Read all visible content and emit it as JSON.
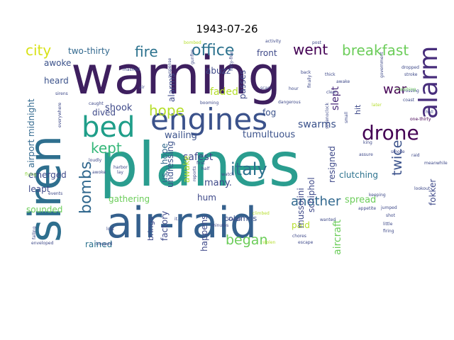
{
  "title": "1943-07-26",
  "words": [
    {
      "text": "planes",
      "color": "#2a9d8f"
    },
    {
      "text": "warning",
      "color": "#3e1f5f"
    },
    {
      "text": "air-raid",
      "color": "#35608d"
    },
    {
      "text": "siren",
      "color": "#2e6f8e"
    },
    {
      "text": "engines",
      "color": "#3b528b"
    },
    {
      "text": "bed",
      "color": "#1f9e89"
    },
    {
      "text": "drone",
      "color": "#440154"
    },
    {
      "text": "alarm",
      "color": "#472d7b"
    },
    {
      "text": "bombs",
      "color": "#31688e"
    },
    {
      "text": "italy",
      "color": "#2c728e"
    },
    {
      "text": "breakfast",
      "color": "#6ccd5a"
    },
    {
      "text": "office",
      "color": "#2c728e"
    },
    {
      "text": "fire",
      "color": "#2c728e"
    },
    {
      "text": "city",
      "color": "#d8e219"
    },
    {
      "text": "went",
      "color": "#440154"
    },
    {
      "text": "hope",
      "color": "#b5de2b"
    },
    {
      "text": "kept",
      "color": "#35b779"
    },
    {
      "text": "began",
      "color": "#6ccd5a"
    },
    {
      "text": "another",
      "color": "#31688e"
    },
    {
      "text": "twice",
      "color": "#3b528b"
    },
    {
      "text": "war",
      "color": "#440154"
    },
    {
      "text": "two-thirty",
      "color": "#31688e"
    },
    {
      "text": "front",
      "color": "#3e4989"
    },
    {
      "text": "fog",
      "color": "#3b528b"
    },
    {
      "text": "slept",
      "color": "#482878"
    },
    {
      "text": "swarms",
      "color": "#3b528b"
    },
    {
      "text": "shook",
      "color": "#3e4989"
    },
    {
      "text": "faded",
      "color": "#b5de2b"
    },
    {
      "text": "tumultuous",
      "color": "#3b528b"
    },
    {
      "text": "wailing",
      "color": "#3b528b"
    },
    {
      "text": "safest",
      "color": "#3e4989"
    },
    {
      "text": "many.",
      "color": "#3e4989"
    },
    {
      "text": "awoke",
      "color": "#3b528b"
    },
    {
      "text": "heard",
      "color": "#3b528b"
    },
    {
      "text": "airport midnight",
      "color": "#31688e"
    },
    {
      "text": "dived",
      "color": "#3e4989"
    },
    {
      "text": "emerged",
      "color": "#3e4989"
    },
    {
      "text": "leapt",
      "color": "#3e4989"
    },
    {
      "text": "sounded",
      "color": "#6ccd5a"
    },
    {
      "text": "rained",
      "color": "#2c728e"
    },
    {
      "text": "gathering",
      "color": "#6ccd5a"
    },
    {
      "text": "clutching",
      "color": "#2c728e"
    },
    {
      "text": "spread",
      "color": "#6ccd5a"
    },
    {
      "text": "paid",
      "color": "#b5de2b"
    },
    {
      "text": "fokker",
      "color": "#3e4989"
    },
    {
      "text": "aircraft",
      "color": "#6ccd5a"
    },
    {
      "text": "schiphol",
      "color": "#3e4989"
    },
    {
      "text": "resigned",
      "color": "#3e4989"
    },
    {
      "text": "mussolini",
      "color": "#3e4989"
    },
    {
      "text": "columns",
      "color": "#3b528b"
    },
    {
      "text": "hum",
      "color": "#3e4989"
    },
    {
      "text": "factory",
      "color": "#3e4989"
    },
    {
      "text": "happens",
      "color": "#3e4989"
    },
    {
      "text": "brings",
      "color": "#3e4989"
    },
    {
      "text": "undressing",
      "color": "#3b528b"
    },
    {
      "text": "us…hope",
      "color": "#31688e"
    },
    {
      "text": "awake",
      "color": "#b5de2b"
    },
    {
      "text": "alarms",
      "color": "#3e4989"
    },
    {
      "text": "abuzz",
      "color": "#3e4989"
    },
    {
      "text": "passes",
      "color": "#3e4989"
    },
    {
      "text": "hit",
      "color": "#3e4989"
    },
    {
      "text": "flying",
      "color": "#8fd744"
    },
    {
      "text": "one-thirty",
      "color": "#440154"
    },
    {
      "text": "lookout",
      "color": "#3e4989"
    },
    {
      "text": "escape",
      "color": "#3e4989"
    },
    {
      "text": "crossing",
      "color": "#3e4989"
    },
    {
      "text": "stroke",
      "color": "#3e4989"
    },
    {
      "text": "matching",
      "color": "#6ccd5a"
    },
    {
      "text": "coast",
      "color": "#3e4989"
    },
    {
      "text": "hall",
      "color": "#3e4989"
    },
    {
      "text": "king",
      "color": "#3e4989"
    },
    {
      "text": "raid",
      "color": "#3e4989"
    },
    {
      "text": "smoke",
      "color": "#3e4989"
    },
    {
      "text": "assure",
      "color": "#3e4989"
    },
    {
      "text": "sevenoclock",
      "color": "#3e4989"
    },
    {
      "text": "little",
      "color": "#3e4989"
    },
    {
      "text": "firing",
      "color": "#3e4989"
    },
    {
      "text": "shot",
      "color": "#3e4989"
    },
    {
      "text": "jumped",
      "color": "#3e4989"
    },
    {
      "text": "wanted",
      "color": "#3e4989"
    },
    {
      "text": "chores",
      "color": "#3e4989"
    },
    {
      "text": "stolen",
      "color": "#b5de2b"
    },
    {
      "text": "climbed",
      "color": "#b5de2b"
    },
    {
      "text": "stayed",
      "color": "#3e4989"
    },
    {
      "text": "minutes",
      "color": "#3e4989"
    },
    {
      "text": "watch",
      "color": "#3e4989"
    },
    {
      "text": "reports",
      "color": "#3e4989"
    },
    {
      "text": "first",
      "color": "#3e4989"
    },
    {
      "text": "half",
      "color": "#3e4989"
    },
    {
      "text": "it.",
      "color": "#3e4989"
    },
    {
      "text": "lost",
      "color": "#3e4989"
    },
    {
      "text": "trooped",
      "color": "#3e4989"
    },
    {
      "text": "enveloped",
      "color": "#3e4989"
    },
    {
      "text": "falling",
      "color": "#3e4989"
    },
    {
      "text": "events",
      "color": "#3e4989"
    },
    {
      "text": "everywhere",
      "color": "#3e4989"
    },
    {
      "text": "sirens",
      "color": "#3e4989"
    },
    {
      "text": "caught",
      "color": "#3e4989"
    },
    {
      "text": "booming",
      "color": "#3e4989"
    },
    {
      "text": "awoke",
      "color": "#3e4989"
    },
    {
      "text": "lay",
      "color": "#3e4989"
    },
    {
      "text": "loudly",
      "color": "#3e4989"
    },
    {
      "text": "harbor",
      "color": "#3e4989"
    },
    {
      "text": "dangerous",
      "color": "#3e4989"
    },
    {
      "text": "scary",
      "color": "#3e4989"
    },
    {
      "text": "forty-five",
      "color": "#3e4989"
    },
    {
      "text": "hour",
      "color": "#3e4989"
    },
    {
      "text": "clear",
      "color": "#3e4989"
    },
    {
      "text": "thick",
      "color": "#3e4989"
    },
    {
      "text": "back",
      "color": "#3e4989"
    },
    {
      "text": "finally",
      "color": "#3e4989"
    },
    {
      "text": "later",
      "color": "#b5de2b"
    },
    {
      "text": "dropped",
      "color": "#3e4989"
    },
    {
      "text": "government",
      "color": "#3e4989"
    },
    {
      "text": "small",
      "color": "#3e4989"
    },
    {
      "text": "bombed",
      "color": "#b5de2b"
    },
    {
      "text": "activity",
      "color": "#3e4989"
    },
    {
      "text": "post",
      "color": "#3e4989"
    },
    {
      "text": "gunfire",
      "color": "#3e4989"
    },
    {
      "text": "suspense",
      "color": "#3e4989"
    },
    {
      "text": "mashed",
      "color": "#3e4989"
    },
    {
      "text": "air",
      "color": "#3e4989"
    },
    {
      "text": "awake",
      "color": "#3e4989"
    },
    {
      "text": "appetite",
      "color": "#3e4989"
    },
    {
      "text": "keeping",
      "color": "#3e4989"
    },
    {
      "text": "meanwhile",
      "color": "#3e4989"
    }
  ]
}
